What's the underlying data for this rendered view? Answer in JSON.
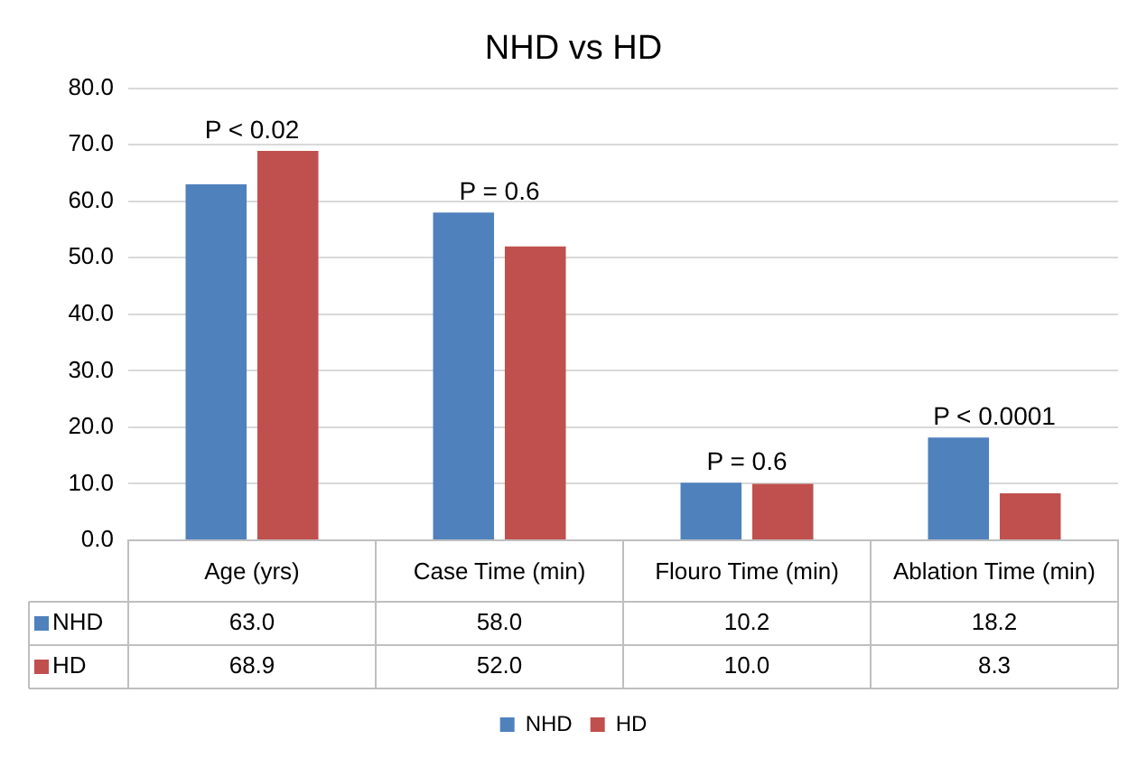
{
  "chart_data": {
    "type": "bar",
    "title": "NHD vs HD",
    "categories": [
      "Age (yrs)",
      "Case Time (min)",
      "Flouro Time (min)",
      "Ablation Time (min)"
    ],
    "series": [
      {
        "name": "NHD",
        "color": "#4f81bd",
        "values": [
          63.0,
          58.0,
          10.2,
          18.2
        ],
        "value_labels": [
          "63.0",
          "58.0",
          "10.2",
          "18.2"
        ]
      },
      {
        "name": "HD",
        "color": "#c0504d",
        "values": [
          68.9,
          52.0,
          10.0,
          8.3
        ],
        "value_labels": [
          "68.9",
          "52.0",
          "10.0",
          "8.3"
        ]
      }
    ],
    "ylim": [
      0,
      80
    ],
    "yticks": [
      {
        "value": 0,
        "label": "0.0"
      },
      {
        "value": 10,
        "label": "10.0"
      },
      {
        "value": 20,
        "label": "20.0"
      },
      {
        "value": 30,
        "label": "30.0"
      },
      {
        "value": 40,
        "label": "40.0"
      },
      {
        "value": 50,
        "label": "50.0"
      },
      {
        "value": 60,
        "label": "60.0"
      },
      {
        "value": 70,
        "label": "70.0"
      },
      {
        "value": 80,
        "label": "80.0"
      }
    ],
    "grid": "y",
    "legend": "bottom",
    "annotations": [
      "P < 0.02",
      "P = 0.6",
      "P = 0.6",
      "P < 0.0001"
    ]
  }
}
